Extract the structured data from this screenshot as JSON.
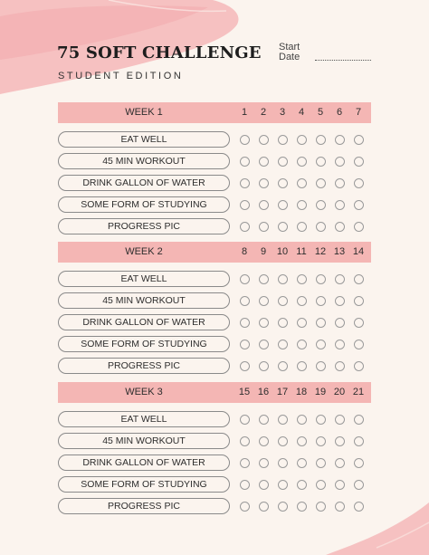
{
  "title": "75 SOFT CHALLENGE",
  "subtitle": "STUDENT EDITION",
  "start_label": "Start",
  "date_label": "Date",
  "colors": {
    "accent": "#f4b6b4",
    "background": "#fbf4ee",
    "brush": "#f5b7b9"
  },
  "weeks": [
    {
      "label": "WEEK 1",
      "days": [
        "1",
        "2",
        "3",
        "4",
        "5",
        "6",
        "7"
      ],
      "tasks": [
        "EAT WELL",
        "45 MIN WORKOUT",
        "DRINK GALLON OF WATER",
        "SOME FORM OF STUDYING",
        "PROGRESS PIC"
      ]
    },
    {
      "label": "WEEK 2",
      "days": [
        "8",
        "9",
        "10",
        "11",
        "12",
        "13",
        "14"
      ],
      "tasks": [
        "EAT WELL",
        "45 MIN WORKOUT",
        "DRINK GALLON OF WATER",
        "SOME FORM OF STUDYING",
        "PROGRESS PIC"
      ]
    },
    {
      "label": "WEEK 3",
      "days": [
        "15",
        "16",
        "17",
        "18",
        "19",
        "20",
        "21"
      ],
      "tasks": [
        "EAT WELL",
        "45 MIN WORKOUT",
        "DRINK GALLON OF WATER",
        "SOME FORM OF STUDYING",
        "PROGRESS PIC"
      ]
    }
  ]
}
